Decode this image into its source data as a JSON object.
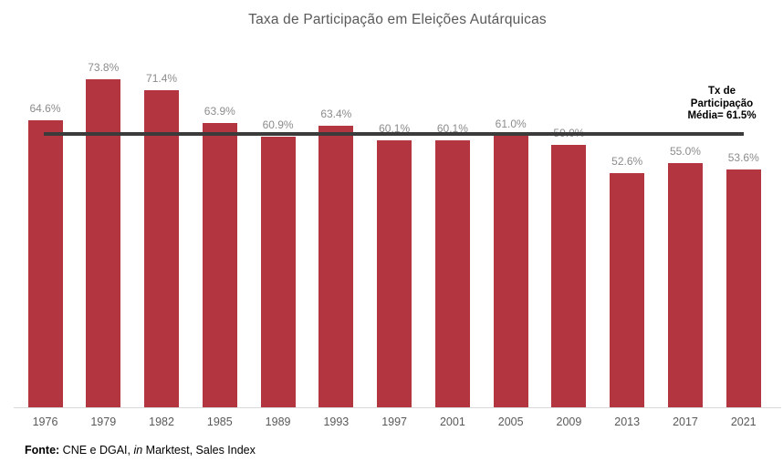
{
  "chart_data": {
    "type": "bar",
    "title": "Taxa de Participação em Eleições Autárquicas",
    "categories": [
      "1976",
      "1979",
      "1982",
      "1985",
      "1989",
      "1993",
      "1997",
      "2001",
      "2005",
      "2009",
      "2013",
      "2017",
      "2021"
    ],
    "values": [
      64.6,
      73.8,
      71.4,
      63.9,
      60.9,
      63.4,
      60.1,
      60.1,
      61.0,
      59.0,
      52.6,
      55.0,
      53.6
    ],
    "value_labels": [
      "64.6%",
      "73.8%",
      "71.4%",
      "63.9%",
      "60.9%",
      "63.4%",
      "60.1%",
      "60.1%",
      "61.0%",
      "59.0%",
      "52.6%",
      "55.0%",
      "53.6%"
    ],
    "xlabel": "",
    "ylabel": "",
    "ylim": [
      0,
      75
    ],
    "grid": false,
    "legend": false,
    "y_axis_visible": false,
    "value_labels_position": "above bars",
    "bar_color": "#B23540",
    "mean_line": {
      "value": 61.5,
      "color": "#3B3B3B",
      "label_lines": [
        "Tx de",
        "Participação",
        "Média= 61.5%"
      ],
      "label_text": "Tx de Participação Média= 61.5%"
    }
  },
  "footer": {
    "bold": "Fonte:",
    "part1": " CNE e DGAI, ",
    "italic": "in",
    "part2": " Marktest, Sales Index"
  }
}
